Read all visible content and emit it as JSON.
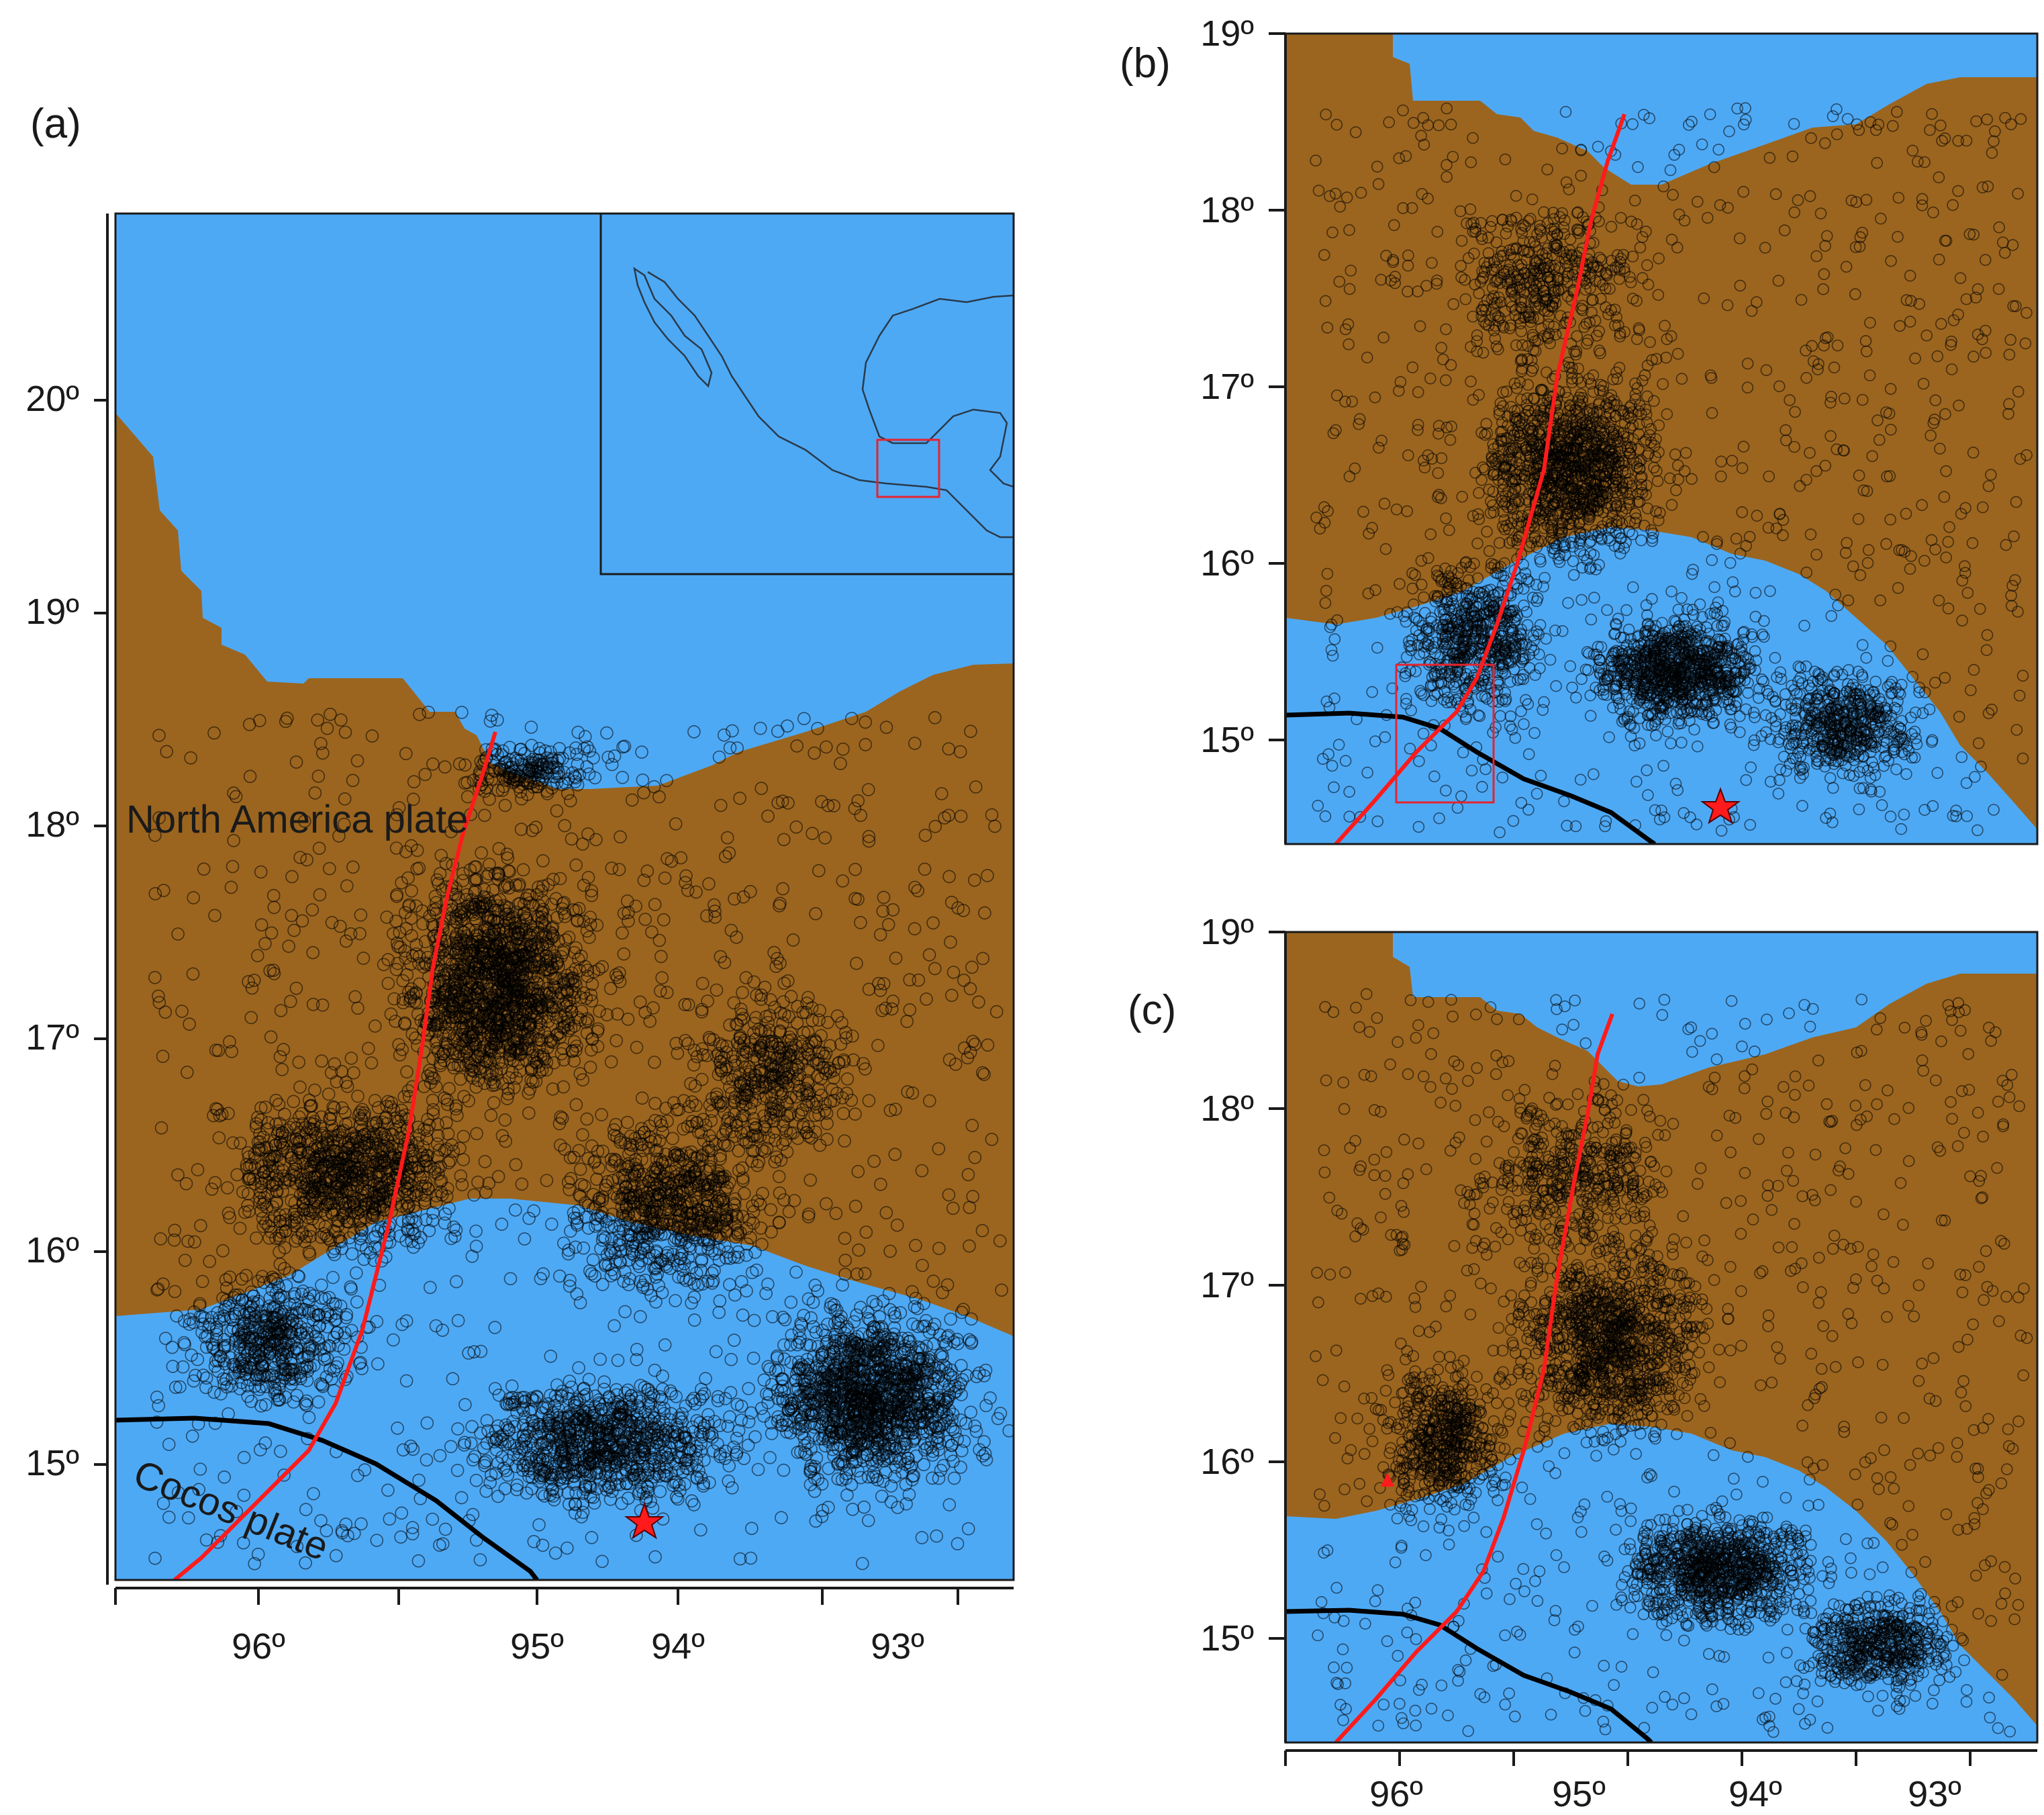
{
  "colors": {
    "ocean": "#4ea9f5",
    "land": "#9b651f",
    "fault": "#ff1b1b",
    "trench": "#000000",
    "event_marker": "#ff1b1b",
    "inset_box": "#e5242e"
  },
  "panels": [
    {
      "id": "a",
      "label": "(a)",
      "lat_ticks": [
        "20º",
        "19º",
        "18º",
        "17º",
        "16º",
        "15º"
      ],
      "lon_ticks": [
        "96º",
        "95º",
        "94º",
        "93º"
      ]
    },
    {
      "id": "b",
      "label": "(b)",
      "lat_ticks": [
        "19º",
        "18º",
        "17º",
        "16º",
        "15º"
      ],
      "lon_ticks": []
    },
    {
      "id": "c",
      "label": "(c)",
      "lat_ticks": [
        "19º",
        "18º",
        "17º",
        "16º",
        "15º"
      ],
      "lon_ticks": [
        "96º",
        "95º",
        "94º",
        "93º"
      ]
    }
  ],
  "plate_labels": {
    "north": "North America plate",
    "south": "Cocos plate"
  },
  "map_extent": {
    "lon_min": 96.75,
    "lon_max": 92.3,
    "lat_min": 14.45,
    "lat_max": 19.2
  },
  "markers": {
    "mainshock_star": {
      "lon": 94.11,
      "lat": 14.66
    },
    "station_triangle": {
      "lon": 96.12,
      "lat": 15.9
    }
  },
  "inset": {
    "region": "Mexico",
    "highlight_box": "study area"
  }
}
